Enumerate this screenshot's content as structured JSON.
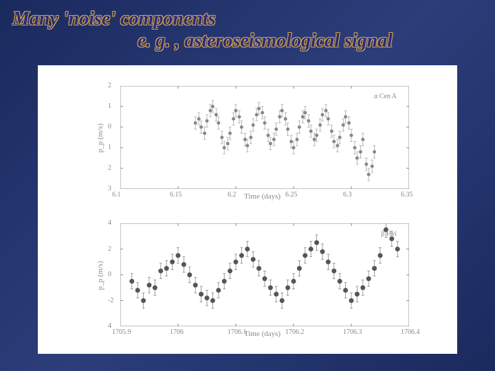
{
  "title": {
    "line1": "Many 'noise' components",
    "line2": "e. g. , asteroseismological signal"
  },
  "chart1": {
    "type": "scatter",
    "annotation": "α Cen A",
    "ylabel": "p_p (m/s)",
    "xlabel": "Time (days)",
    "ylim": [
      -3,
      2
    ],
    "xlim": [
      6.1,
      6.35
    ],
    "xticks": [
      6.1,
      6.15,
      6.2,
      6.25,
      6.3,
      6.35
    ],
    "yticks": [
      -3,
      -2,
      -1,
      0,
      1,
      2
    ],
    "yticklabels": [
      "3",
      "2",
      "1",
      "0",
      "1",
      "2"
    ],
    "marker_size": 2.5,
    "marker_color": "#888888",
    "errorbar_color": "#aaaaaa",
    "background_color": "#ffffff",
    "border_color": "#888888",
    "data": [
      [
        6.165,
        0.2
      ],
      [
        6.168,
        0.4
      ],
      [
        6.17,
        0.0
      ],
      [
        6.173,
        -0.3
      ],
      [
        6.175,
        0.3
      ],
      [
        6.178,
        0.8
      ],
      [
        6.18,
        1.0
      ],
      [
        6.183,
        0.6
      ],
      [
        6.185,
        0.2
      ],
      [
        6.188,
        -0.5
      ],
      [
        6.19,
        -1.0
      ],
      [
        6.193,
        -0.8
      ],
      [
        6.195,
        -0.3
      ],
      [
        6.198,
        0.4
      ],
      [
        6.2,
        0.8
      ],
      [
        6.203,
        0.5
      ],
      [
        6.205,
        0.0
      ],
      [
        6.208,
        -0.6
      ],
      [
        6.21,
        -0.9
      ],
      [
        6.213,
        -0.5
      ],
      [
        6.215,
        0.1
      ],
      [
        6.218,
        0.6
      ],
      [
        6.22,
        0.9
      ],
      [
        6.223,
        0.7
      ],
      [
        6.225,
        0.2
      ],
      [
        6.228,
        -0.4
      ],
      [
        6.23,
        -0.8
      ],
      [
        6.233,
        -0.6
      ],
      [
        6.235,
        -0.1
      ],
      [
        6.238,
        0.5
      ],
      [
        6.24,
        0.8
      ],
      [
        6.243,
        0.4
      ],
      [
        6.245,
        -0.1
      ],
      [
        6.248,
        -0.7
      ],
      [
        6.25,
        -1.0
      ],
      [
        6.253,
        -0.6
      ],
      [
        6.255,
        0.0
      ],
      [
        6.258,
        0.5
      ],
      [
        6.26,
        0.7
      ],
      [
        6.263,
        0.3
      ],
      [
        6.265,
        -0.2
      ],
      [
        6.268,
        -0.6
      ],
      [
        6.27,
        -0.4
      ],
      [
        6.273,
        0.1
      ],
      [
        6.275,
        0.6
      ],
      [
        6.278,
        0.8
      ],
      [
        6.28,
        0.4
      ],
      [
        6.283,
        -0.2
      ],
      [
        6.285,
        -0.7
      ],
      [
        6.288,
        -0.9
      ],
      [
        6.29,
        -0.5
      ],
      [
        6.293,
        0.1
      ],
      [
        6.295,
        0.5
      ],
      [
        6.298,
        0.2
      ],
      [
        6.3,
        -0.4
      ],
      [
        6.303,
        -1.0
      ],
      [
        6.305,
        -1.5
      ],
      [
        6.308,
        -1.2
      ],
      [
        6.31,
        -0.6
      ],
      [
        6.313,
        -1.8
      ],
      [
        6.315,
        -2.3
      ],
      [
        6.318,
        -1.9
      ],
      [
        6.32,
        -1.2
      ]
    ],
    "err": 0.3
  },
  "chart2": {
    "type": "scatter",
    "annotation": "β Hyi",
    "ylabel": "p_p (m/s)",
    "xlabel": "Time (days)",
    "ylim": [
      -4,
      4
    ],
    "xlim": [
      1705.9,
      1706.4
    ],
    "xticks": [
      1705.9,
      1706.0,
      1706.1,
      1706.2,
      1706.3,
      1706.4
    ],
    "yticks": [
      -4,
      -2,
      0,
      2,
      4
    ],
    "yticklabels": [
      "4",
      "-2",
      "0",
      "2",
      "4"
    ],
    "marker_size": 3.5,
    "marker_color": "#555555",
    "errorbar_color": "#888888",
    "background_color": "#ffffff",
    "border_color": "#888888",
    "data": [
      [
        1705.92,
        -0.5
      ],
      [
        1705.94,
        -2.0
      ],
      [
        1705.96,
        -1.0
      ],
      [
        1705.98,
        0.5
      ],
      [
        1706.0,
        1.5
      ],
      [
        1706.02,
        0.0
      ],
      [
        1706.04,
        -1.5
      ],
      [
        1706.06,
        -2.0
      ],
      [
        1706.08,
        -0.5
      ],
      [
        1706.1,
        1.0
      ],
      [
        1706.12,
        2.0
      ],
      [
        1706.14,
        0.5
      ],
      [
        1706.16,
        -1.0
      ],
      [
        1706.18,
        -2.0
      ],
      [
        1706.2,
        -0.5
      ],
      [
        1706.22,
        1.5
      ],
      [
        1706.24,
        2.5
      ],
      [
        1706.26,
        1.0
      ],
      [
        1706.28,
        -0.5
      ],
      [
        1706.3,
        -2.0
      ],
      [
        1706.32,
        -1.0
      ],
      [
        1706.34,
        0.5
      ],
      [
        1706.36,
        3.5
      ],
      [
        1706.38,
        2.0
      ],
      [
        1705.93,
        -1.2
      ],
      [
        1705.95,
        -0.8
      ],
      [
        1705.97,
        0.3
      ],
      [
        1705.99,
        1.0
      ],
      [
        1706.01,
        0.8
      ],
      [
        1706.03,
        -0.8
      ],
      [
        1706.05,
        -1.8
      ],
      [
        1706.07,
        -1.2
      ],
      [
        1706.09,
        0.3
      ],
      [
        1706.11,
        1.5
      ],
      [
        1706.13,
        1.2
      ],
      [
        1706.15,
        -0.3
      ],
      [
        1706.17,
        -1.5
      ],
      [
        1706.19,
        -1.0
      ],
      [
        1706.21,
        0.5
      ],
      [
        1706.23,
        2.0
      ],
      [
        1706.25,
        1.8
      ],
      [
        1706.27,
        0.3
      ],
      [
        1706.29,
        -1.2
      ],
      [
        1706.31,
        -1.5
      ],
      [
        1706.33,
        -0.3
      ],
      [
        1706.35,
        1.5
      ],
      [
        1706.37,
        2.8
      ]
    ],
    "err": 0.6
  }
}
